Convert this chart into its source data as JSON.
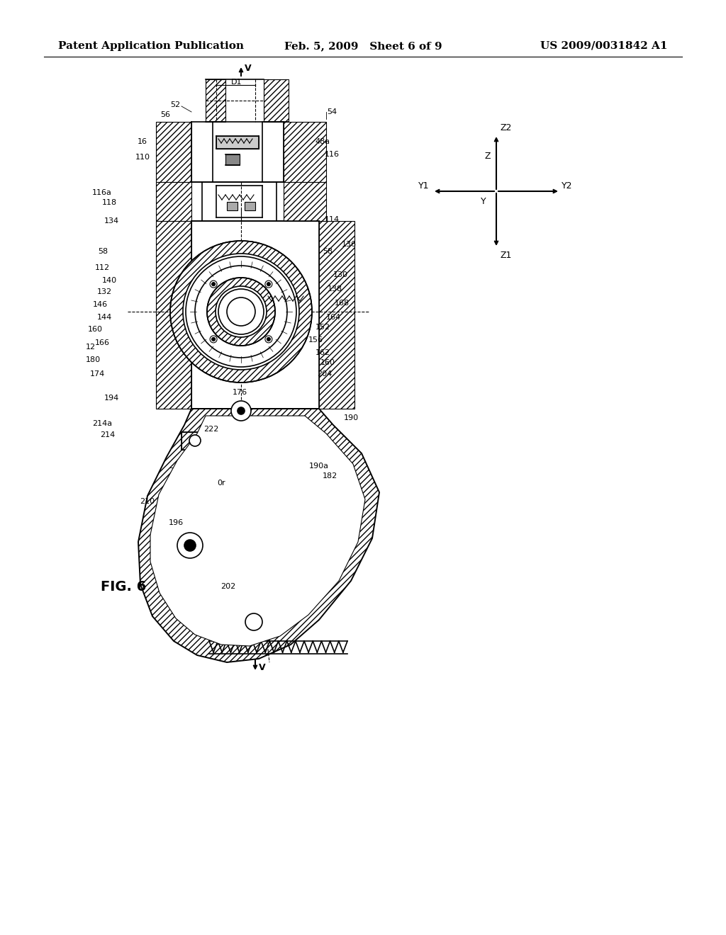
{
  "background_color": "#ffffff",
  "header_left": "Patent Application Publication",
  "header_center": "Feb. 5, 2009   Sheet 6 of 9",
  "header_right": "US 2009/0031842 A1",
  "figure_label": "FIG. 6",
  "header_font_size": 11,
  "figure_label_font_size": 14,
  "title_color": "#000000",
  "line_color": "#000000",
  "hatch_color": "#000000"
}
